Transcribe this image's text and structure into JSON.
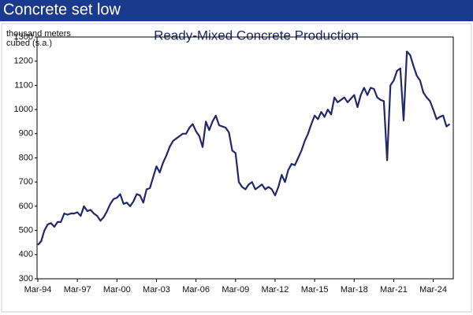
{
  "header": "Concrete set low",
  "chart_data": {
    "type": "line",
    "title": "Ready-Mixed Concrete Production",
    "y_label": "thousand meters cubed (s.a.)",
    "categories": [
      "Mar-94",
      null,
      null,
      null,
      null,
      null,
      null,
      null,
      null,
      null,
      null,
      null,
      "Mar-97",
      null,
      null,
      null,
      null,
      null,
      null,
      null,
      null,
      null,
      null,
      null,
      "Mar-00",
      null,
      null,
      null,
      null,
      null,
      null,
      null,
      null,
      null,
      null,
      null,
      "Mar-03",
      null,
      null,
      null,
      null,
      null,
      null,
      null,
      null,
      null,
      null,
      null,
      "Mar-06",
      null,
      null,
      null,
      null,
      null,
      null,
      null,
      null,
      null,
      null,
      null,
      "Mar-09",
      null,
      null,
      null,
      null,
      null,
      null,
      null,
      null,
      null,
      null,
      null,
      "Mar-12",
      null,
      null,
      null,
      null,
      null,
      null,
      null,
      null,
      null,
      null,
      null,
      "Mar-15",
      null,
      null,
      null,
      null,
      null,
      null,
      null,
      null,
      null,
      null,
      null,
      "Mar-18",
      null,
      null,
      null,
      null,
      null,
      null,
      null,
      null,
      null,
      null,
      null,
      "Mar-21",
      null,
      null,
      null,
      null,
      null,
      null,
      null,
      null,
      null,
      null,
      null,
      "Mar-24",
      null,
      null,
      null,
      null,
      null
    ],
    "series": [
      {
        "color": "#22286b",
        "values": [
          440,
          455,
          500,
          525,
          530,
          515,
          535,
          535,
          570,
          565,
          570,
          570,
          575,
          560,
          600,
          580,
          585,
          570,
          560,
          540,
          555,
          580,
          610,
          630,
          635,
          650,
          610,
          615,
          600,
          620,
          650,
          645,
          615,
          670,
          675,
          720,
          765,
          740,
          780,
          810,
          845,
          870,
          880,
          890,
          900,
          900,
          925,
          940,
          910,
          890,
          845,
          950,
          915,
          950,
          975,
          935,
          930,
          925,
          905,
          830,
          820,
          700,
          680,
          670,
          690,
          700,
          670,
          680,
          690,
          670,
          680,
          670,
          645,
          680,
          730,
          700,
          750,
          775,
          770,
          800,
          830,
          870,
          900,
          940,
          975,
          960,
          990,
          970,
          1000,
          980,
          1050,
          1030,
          1040,
          1050,
          1030,
          1045,
          1060,
          1010,
          1060,
          1090,
          1060,
          1090,
          1085,
          1050,
          1040,
          1035,
          790,
          1100,
          1120,
          1160,
          1170,
          955,
          1240,
          1225,
          1180,
          1140,
          1120,
          1070,
          1050,
          1035,
          1000,
          960,
          970,
          975,
          930,
          940
        ]
      }
    ],
    "ylim": [
      300,
      1300
    ],
    "yticks": [
      300,
      400,
      500,
      600,
      700,
      800,
      900,
      1000,
      1100,
      1200,
      1300
    ]
  }
}
